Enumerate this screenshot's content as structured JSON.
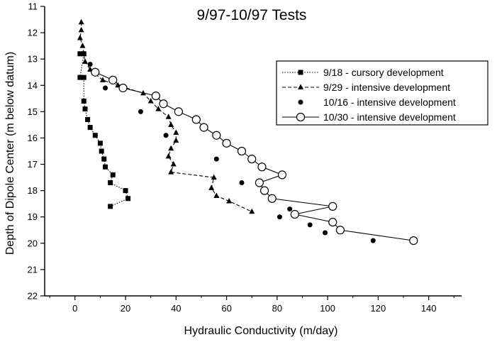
{
  "chart_data": {
    "type": "scatter",
    "title": "9/97-10/97 Tests",
    "xlabel": "Hydraulic Conductivity (m/day)",
    "ylabel": "Depth of Dipole Center (m below datum)",
    "xlim": [
      -12,
      153
    ],
    "ylim": [
      11,
      22
    ],
    "y_inverted": true,
    "xticks": [
      0,
      20,
      40,
      60,
      80,
      100,
      120,
      140
    ],
    "yticks": [
      11,
      12,
      13,
      14,
      15,
      16,
      17,
      18,
      19,
      20,
      21,
      22
    ],
    "legend_position": "top-right",
    "series": [
      {
        "name": "9/18 - cursory development",
        "marker": "square",
        "line": "dotted",
        "points": [
          [
            2,
            12.8
          ],
          [
            3.5,
            12.8
          ],
          [
            2,
            13.7
          ],
          [
            3.5,
            13.7
          ],
          [
            3.5,
            14.6
          ],
          [
            4,
            14.9
          ],
          [
            5,
            15.3
          ],
          [
            6,
            15.6
          ],
          [
            8,
            15.9
          ],
          [
            10,
            16.2
          ],
          [
            10.5,
            16.5
          ],
          [
            11.5,
            16.8
          ],
          [
            12,
            17.1
          ],
          [
            15,
            17.4
          ],
          [
            14,
            17.7
          ],
          [
            20,
            18
          ],
          [
            21,
            18.3
          ],
          [
            14,
            18.6
          ]
        ]
      },
      {
        "name": "9/29 - intensive development",
        "marker": "triangle",
        "line": "dashed",
        "points": [
          [
            2.5,
            11.6
          ],
          [
            2.5,
            11.9
          ],
          [
            2,
            12.2
          ],
          [
            3,
            12.5
          ],
          [
            3.5,
            12.8
          ],
          [
            4,
            13.1
          ],
          [
            6,
            13.4
          ],
          [
            11,
            13.8
          ],
          [
            17,
            14
          ],
          [
            27,
            14.3
          ],
          [
            30,
            14.6
          ],
          [
            33,
            14.9
          ],
          [
            37,
            15.2
          ],
          [
            38,
            15.5
          ],
          [
            40,
            15.8
          ],
          [
            40,
            16.1
          ],
          [
            38,
            16.4
          ],
          [
            37,
            16.7
          ],
          [
            39,
            17
          ],
          [
            38,
            17.3
          ],
          [
            55,
            17.5
          ],
          [
            54,
            17.9
          ],
          [
            56,
            18.2
          ],
          [
            61,
            18.4
          ],
          [
            70,
            18.8
          ]
        ]
      },
      {
        "name": "10/16 - intensive development",
        "marker": "filled-circle",
        "line": "none",
        "points": [
          [
            6,
            13.2
          ],
          [
            12,
            14.1
          ],
          [
            26,
            15
          ],
          [
            36,
            15.9
          ],
          [
            56,
            16.8
          ],
          [
            66,
            17.7
          ],
          [
            85,
            18.7
          ],
          [
            81,
            19
          ],
          [
            93,
            19.3
          ],
          [
            99,
            19.6
          ],
          [
            118,
            19.9
          ]
        ]
      },
      {
        "name": "10/30 - intensive development",
        "marker": "open-circle",
        "line": "solid",
        "points": [
          [
            8,
            13.5
          ],
          [
            15,
            13.8
          ],
          [
            19,
            14.1
          ],
          [
            32,
            14.4
          ],
          [
            35,
            14.7
          ],
          [
            41,
            15
          ],
          [
            48,
            15.3
          ],
          [
            51,
            15.6
          ],
          [
            56,
            15.9
          ],
          [
            60,
            16.2
          ],
          [
            66,
            16.5
          ],
          [
            70,
            16.8
          ],
          [
            74,
            17.1
          ],
          [
            82,
            17.4
          ],
          [
            73,
            17.7
          ],
          [
            75,
            18
          ],
          [
            78,
            18.3
          ],
          [
            102,
            18.6
          ],
          [
            87,
            18.9
          ],
          [
            102,
            19.2
          ],
          [
            105,
            19.5
          ],
          [
            134,
            19.9
          ]
        ]
      }
    ]
  }
}
